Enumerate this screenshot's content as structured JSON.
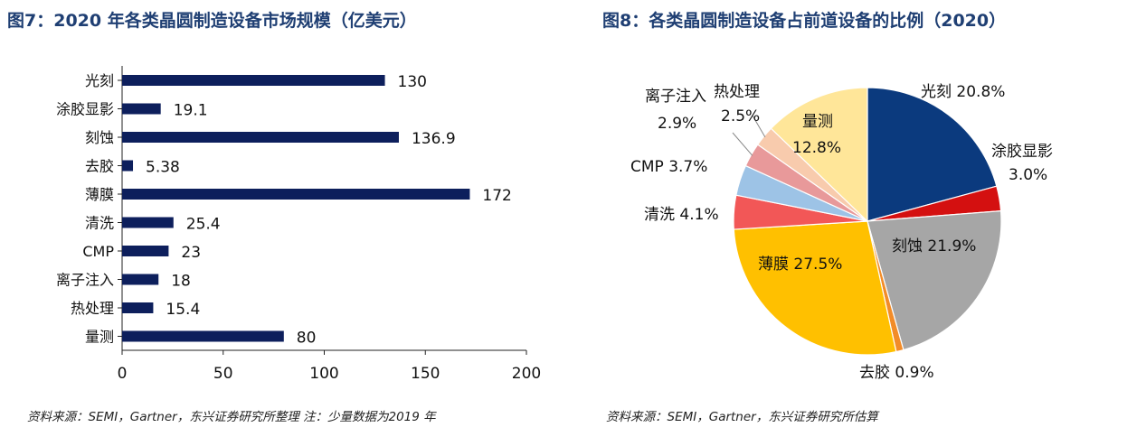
{
  "chart_data": [
    {
      "type": "bar",
      "orientation": "horizontal",
      "title": "图7：2020 年各类晶圆制造设备市场规模（亿美元）",
      "categories": [
        "光刻",
        "涂胶显影",
        "刻蚀",
        "去胶",
        "薄膜",
        "清洗",
        "CMP",
        "离子注入",
        "热处理",
        "量测"
      ],
      "values": [
        130,
        19.1,
        136.9,
        5.38,
        172,
        25.4,
        23,
        18,
        15.4,
        80
      ],
      "value_labels": [
        "130",
        "19.1",
        "136.9",
        "5.38",
        "172",
        "25.4",
        "23",
        "18",
        "15.4",
        "80"
      ],
      "xlim": [
        0,
        200
      ],
      "xticks": [
        "0",
        "50",
        "100",
        "150",
        "200"
      ],
      "bar_color": "#0d1f5c",
      "source": "资料来源：SEMI，Gartner，东兴证券研究所整理 注：少量数据为2019 年"
    },
    {
      "type": "pie",
      "title": "图8：各类晶圆制造设备占前道设备的比例（2020）",
      "slices": [
        {
          "label": "光刻",
          "value": 20.8,
          "color": "#0b3a7e"
        },
        {
          "label": "涂胶显影",
          "value": 3.0,
          "color": "#d41010"
        },
        {
          "label": "刻蚀",
          "value": 21.9,
          "color": "#a6a6a6"
        },
        {
          "label": "去胶",
          "value": 0.9,
          "color": "#f28c28"
        },
        {
          "label": "薄膜",
          "value": 27.5,
          "color": "#ffc000"
        },
        {
          "label": "清洗",
          "value": 4.1,
          "color": "#f25757"
        },
        {
          "label": "CMP",
          "value": 3.7,
          "color": "#9dc3e6"
        },
        {
          "label": "离子注入",
          "value": 2.9,
          "color": "#e8999a"
        },
        {
          "label": "热处理",
          "value": 2.5,
          "color": "#f8cbad"
        },
        {
          "label": "量测",
          "value": 12.8,
          "color": "#ffe699"
        }
      ],
      "slice_labels": [
        "光刻 20.8%",
        "涂胶显影",
        "3.0%",
        "刻蚀 21.9%",
        "去胶 0.9%",
        "薄膜 27.5%",
        "清洗 4.1%",
        "CMP 3.7%",
        "离子注入",
        "2.9%",
        "热处理",
        "2.5%",
        "量测",
        "12.8%"
      ],
      "source": "资料来源：SEMI，Gartner，东兴证券研究所估算"
    }
  ]
}
